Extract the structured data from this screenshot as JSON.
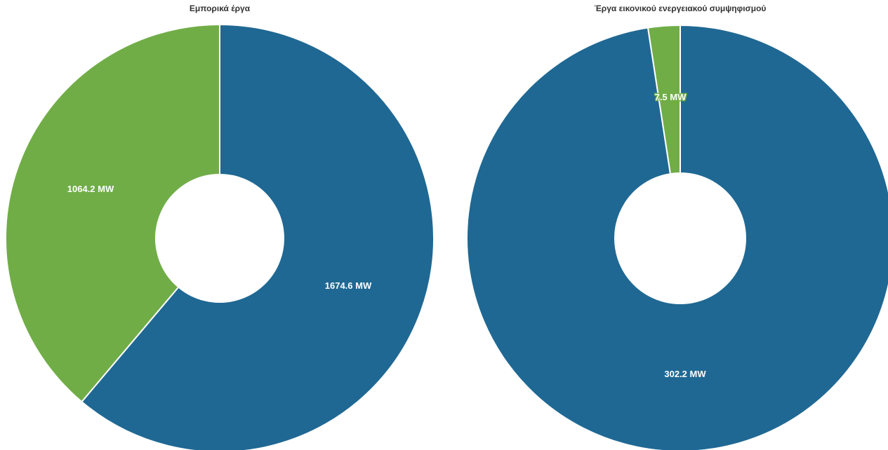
{
  "chart_data": [
    {
      "type": "pie",
      "title": "Εμπορικά έργα",
      "slices": [
        {
          "value": 1674.6,
          "label": "1674.6 MW",
          "color": "#1f6893"
        },
        {
          "value": 1064.2,
          "label": "1064.2 MW",
          "color": "#70ad47"
        }
      ]
    },
    {
      "type": "pie",
      "title": "Έργα εικονικού ενεργειακού συμψηφισμού",
      "slices": [
        {
          "value": 302.2,
          "label": "302.2 MW",
          "color": "#1f6893"
        },
        {
          "value": 7.5,
          "label": "7.5 MW",
          "color": "#70ad47"
        }
      ]
    }
  ]
}
